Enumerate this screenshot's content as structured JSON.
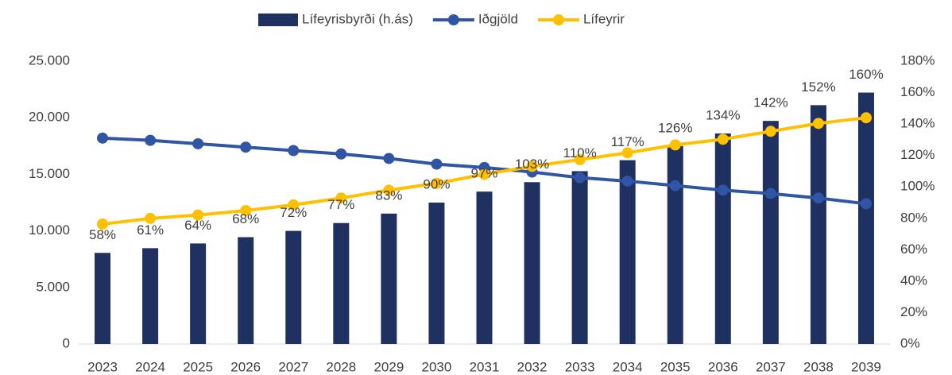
{
  "chart_data": {
    "type": "bar_line",
    "categories": [
      "2023",
      "2024",
      "2025",
      "2026",
      "2027",
      "2028",
      "2029",
      "2030",
      "2031",
      "2032",
      "2033",
      "2034",
      "2035",
      "2036",
      "2037",
      "2038",
      "2039"
    ],
    "series": [
      {
        "name": "Lífeyrisbyrði (h.ás)",
        "type": "bar",
        "axis": "y2",
        "color": "#1f3161",
        "values": [
          58,
          61,
          64,
          68,
          72,
          77,
          83,
          90,
          97,
          103,
          110,
          117,
          126,
          134,
          142,
          152,
          160
        ],
        "value_labels": [
          "58%",
          "61%",
          "64%",
          "68%",
          "72%",
          "77%",
          "83%",
          "90%",
          "97%",
          "103%",
          "110%",
          "117%",
          "126%",
          "134%",
          "142%",
          "152%",
          "160%"
        ]
      },
      {
        "name": "Iðgjöld",
        "type": "line",
        "axis": "y",
        "color": "#2f55a4",
        "values": [
          18200,
          18000,
          17700,
          17400,
          17100,
          16800,
          16400,
          15900,
          15600,
          15200,
          14700,
          14400,
          14000,
          13600,
          13300,
          12900,
          12400
        ]
      },
      {
        "name": "Lífeyrir",
        "type": "line",
        "axis": "y",
        "color": "#ffc000",
        "values": [
          10600,
          11100,
          11400,
          11800,
          12300,
          12900,
          13600,
          14200,
          15000,
          15700,
          16300,
          16900,
          17600,
          18100,
          18800,
          19500,
          20000
        ]
      }
    ],
    "ylim": [
      0,
      25000
    ],
    "yticks": [
      0,
      {
        "value": 5000,
        "label": "5.000"
      },
      {
        "value": 10000,
        "label": "10.000"
      },
      {
        "value": 15000,
        "label": "15.000"
      },
      {
        "value": 20000,
        "label": "20.000"
      },
      {
        "value": 25000,
        "label": "25.000"
      }
    ],
    "y2lim": [
      0,
      180
    ],
    "y2ticks": [
      {
        "value": 0,
        "label": "0%"
      },
      {
        "value": 20,
        "label": "20%"
      },
      {
        "value": 40,
        "label": "40%"
      },
      {
        "value": 60,
        "label": "60%"
      },
      {
        "value": 80,
        "label": "80%"
      },
      {
        "value": 100,
        "label": "100%"
      },
      {
        "value": 120,
        "label": "120%"
      },
      {
        "value": 140,
        "label": "140%"
      },
      {
        "value": 160,
        "label": "160%"
      },
      {
        "value": 180,
        "label": "180%"
      }
    ],
    "legend": "top"
  }
}
